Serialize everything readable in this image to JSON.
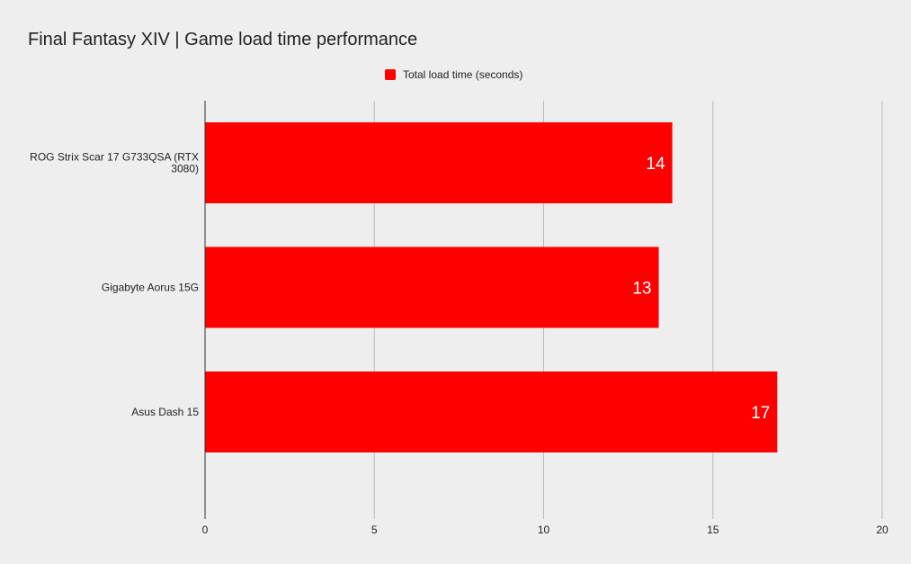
{
  "chart_data": {
    "type": "bar",
    "orientation": "horizontal",
    "title": "Final Fantasy XIV | Game load time performance",
    "categories": [
      [
        "ROG Strix Scar 17 G733QSA (RTX",
        "3080)"
      ],
      [
        "Gigabyte Aorus 15G"
      ],
      [
        "Asus Dash 15"
      ]
    ],
    "series": [
      {
        "name": "Total load time (seconds)",
        "color": "#ff0000",
        "values": [
          13.8,
          13.4,
          16.9
        ],
        "labels": [
          "14",
          "13",
          "17"
        ]
      }
    ],
    "xlim": [
      0,
      20
    ],
    "xticks": [
      0,
      5,
      10,
      15,
      20
    ],
    "xlabel": "",
    "ylabel": "",
    "grid": true,
    "legend": "top-center"
  }
}
